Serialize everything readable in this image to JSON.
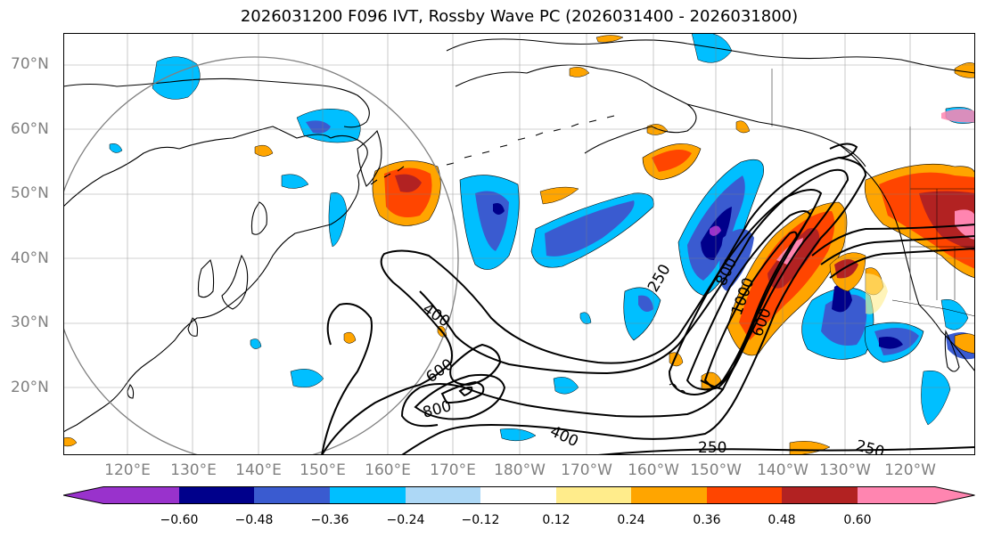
{
  "title": "2026031200 F096 IVT, Rossby Wave PC (2026031400 - 2026031800)",
  "lat_labels": [
    "70°N",
    "60°N",
    "50°N",
    "40°N",
    "30°N",
    "20°N"
  ],
  "lon_labels": [
    "120°E",
    "130°E",
    "140°E",
    "150°E",
    "160°E",
    "170°E",
    "180°W",
    "170°W",
    "160°W",
    "150°W",
    "140°W",
    "130°W",
    "120°W"
  ],
  "contour_labels": [
    "400",
    "600",
    "800",
    "400",
    "250",
    "800",
    "1000",
    "600",
    "250",
    "250"
  ],
  "colorbar": {
    "ticks": [
      "−0.60",
      "−0.48",
      "−0.36",
      "−0.24",
      "−0.12",
      "0.12",
      "0.24",
      "0.36",
      "0.48",
      "0.60"
    ],
    "colors": [
      "#9932cc",
      "#00008b",
      "#3a5bd0",
      "#00bfff",
      "#add8f6",
      "#ffffff",
      "#ffec8b",
      "#ffa500",
      "#ff4500",
      "#b22222",
      "#ff85b0"
    ]
  },
  "colors": {
    "negative_fill": "#00bfff",
    "positive_fill": "#ffa500",
    "contour": "#000000",
    "coast": "#000000",
    "grid": "#808080"
  }
}
